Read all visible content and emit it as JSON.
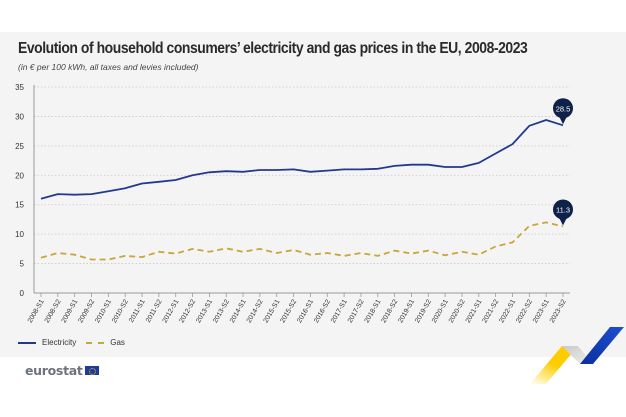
{
  "header": {
    "title": "Evolution of household consumers’ electricity and gas prices in the EU, 2008-2023",
    "subtitle": "(in € per 100 kWh, all taxes and levies included)"
  },
  "footer": {
    "logo_text": "eurostat",
    "logo_flag": "eu-flag-icon"
  },
  "colors": {
    "electricity": "#233a8c",
    "gas": "#c8a63a",
    "callout": "#0e2148",
    "panel_bg": "#f4f4f4",
    "grid": "#c8c8c8"
  },
  "chart_data": {
    "type": "line",
    "title": "Evolution of household consumers’ electricity and gas prices in the EU, 2008-2023",
    "subtitle": "(in € per 100 kWh, all taxes and levies included)",
    "xlabel": "",
    "ylabel": "",
    "ylim": [
      0,
      35
    ],
    "yticks": [
      0,
      5,
      10,
      15,
      20,
      25,
      30,
      35
    ],
    "grid": true,
    "legend_position": "bottom-left",
    "categories": [
      "2008-S1",
      "2008-S2",
      "2009-S1",
      "2009-S2",
      "2010-S1",
      "2010-S2",
      "2011-S1",
      "2011-S2",
      "2012-S1",
      "2012-S2",
      "2013-S1",
      "2013-S2",
      "2014-S1",
      "2014-S2",
      "2015-S1",
      "2015-S2",
      "2016-S1",
      "2016-S2",
      "2017-S1",
      "2017-S2",
      "2018-S1",
      "2018-S2",
      "2019-S1",
      "2019-S2",
      "2020-S1",
      "2020-S2",
      "2021-S1",
      "2021-S2",
      "2022-S1",
      "2022-S2",
      "2023-S1",
      "2023-S2"
    ],
    "series": [
      {
        "name": "Electricity",
        "style": "solid",
        "values": [
          16.0,
          16.8,
          16.7,
          16.8,
          17.3,
          17.8,
          18.6,
          18.9,
          19.2,
          20.0,
          20.5,
          20.7,
          20.6,
          20.9,
          20.9,
          21.0,
          20.6,
          20.8,
          21.0,
          21.0,
          21.1,
          21.6,
          21.8,
          21.8,
          21.4,
          21.4,
          22.1,
          23.7,
          25.3,
          28.4,
          29.4,
          28.5
        ],
        "annotation": {
          "index": 31,
          "label": "28.5"
        }
      },
      {
        "name": "Gas",
        "style": "dashed",
        "values": [
          6.0,
          6.8,
          6.5,
          5.7,
          5.7,
          6.3,
          6.1,
          7.0,
          6.7,
          7.5,
          7.0,
          7.6,
          7.0,
          7.5,
          6.8,
          7.3,
          6.5,
          6.8,
          6.3,
          6.8,
          6.3,
          7.2,
          6.7,
          7.2,
          6.4,
          7.0,
          6.5,
          7.9,
          8.6,
          11.4,
          12.0,
          11.3
        ],
        "annotation": {
          "index": 31,
          "label": "11.3"
        }
      }
    ]
  }
}
